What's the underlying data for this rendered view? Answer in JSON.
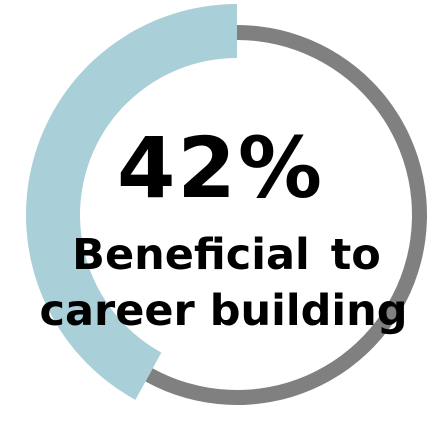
{
  "chart_data": {
    "type": "pie",
    "title": "",
    "slices": [
      {
        "label": "Beneficial to career building",
        "value": 42,
        "color": "#a9cfd8"
      },
      {
        "label": "",
        "value": 58,
        "color": "#808080"
      }
    ],
    "center_value": "42%",
    "center_label_line1": "Beneficial  to",
    "center_label_line2": "career building"
  }
}
